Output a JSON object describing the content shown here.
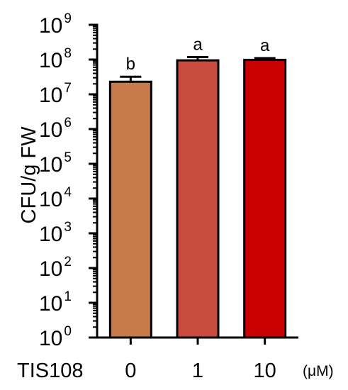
{
  "chart_data": {
    "type": "bar",
    "yscale": "log",
    "ylim": [
      1,
      1000000000
    ],
    "ylabel": "CFU/g FW",
    "y_ticks": [
      {
        "base": "10",
        "exp": "0",
        "value": 1
      },
      {
        "base": "10",
        "exp": "1",
        "value": 10
      },
      {
        "base": "10",
        "exp": "2",
        "value": 100
      },
      {
        "base": "10",
        "exp": "3",
        "value": 1000
      },
      {
        "base": "10",
        "exp": "4",
        "value": 10000
      },
      {
        "base": "10",
        "exp": "5",
        "value": 100000
      },
      {
        "base": "10",
        "exp": "6",
        "value": 1000000
      },
      {
        "base": "10",
        "exp": "7",
        "value": 10000000
      },
      {
        "base": "10",
        "exp": "8",
        "value": 100000000
      },
      {
        "base": "10",
        "exp": "9",
        "value": 1000000000
      }
    ],
    "x_row_label": "TIS108",
    "x_unit": "(μM)",
    "categories": [
      "0",
      "1",
      "10"
    ],
    "values": [
      23000000,
      95000000,
      98000000
    ],
    "error_upper": [
      32000000,
      118000000,
      110000000
    ],
    "significance": [
      "b",
      "a",
      "a"
    ],
    "colors": [
      "#c97a4b",
      "#c94b3d",
      "#c80000"
    ],
    "grid": false
  }
}
